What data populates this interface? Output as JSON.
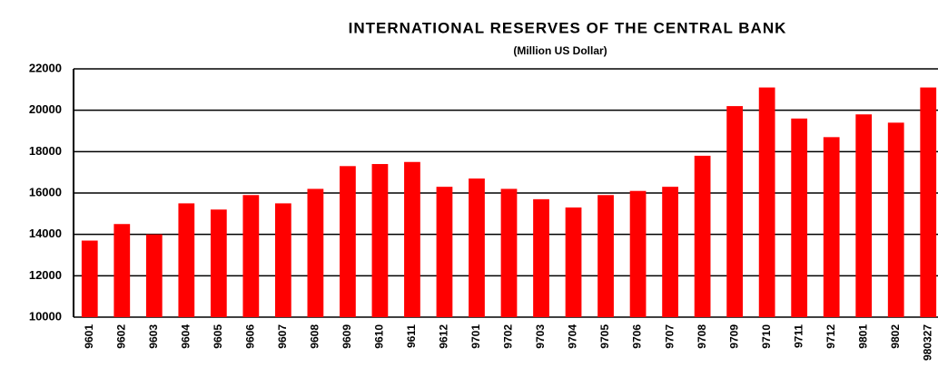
{
  "chart_data": {
    "type": "bar",
    "title": "INTERNATIONAL RESERVES OF THE CENTRAL BANK",
    "subtitle": "(Million US Dollar)",
    "categories": [
      "9601",
      "9602",
      "9603",
      "9604",
      "9605",
      "9606",
      "9607",
      "9608",
      "9609",
      "9610",
      "9611",
      "9612",
      "9701",
      "9702",
      "9703",
      "9704",
      "9705",
      "9706",
      "9707",
      "9708",
      "9709",
      "9710",
      "9711",
      "9712",
      "9801",
      "9802",
      "980327"
    ],
    "values": [
      13700,
      14500,
      14000,
      15500,
      15200,
      15900,
      15500,
      16200,
      17300,
      17400,
      17500,
      16300,
      16700,
      16200,
      15700,
      15300,
      15900,
      16100,
      16300,
      17800,
      20200,
      21100,
      19600,
      18700,
      19800,
      19400,
      21100
    ],
    "color": "#ff0000",
    "ylim": [
      10000,
      22000
    ],
    "yticks": [
      10000,
      12000,
      14000,
      16000,
      18000,
      20000,
      22000
    ],
    "grid": true
  }
}
